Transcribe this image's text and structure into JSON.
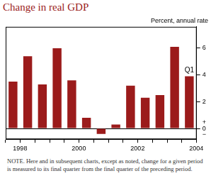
{
  "chart_data": {
    "type": "bar",
    "title": "Change in real GDP",
    "subtitle": "Percent, annual rate",
    "categories": [
      "1998",
      null,
      null,
      null,
      "2000",
      null,
      null,
      null,
      "2002",
      null,
      null,
      null,
      "2004"
    ],
    "values": [
      3.5,
      5.4,
      3.3,
      6.0,
      3.6,
      0.8,
      -0.4,
      0.3,
      3.2,
      2.3,
      2.5,
      6.1,
      3.9
    ],
    "color": "#9b1b1b",
    "ylim": [
      -0.8,
      7.6
    ],
    "yticks": [
      {
        "value": 0,
        "label": "+\n0\n−"
      },
      2,
      4,
      6
    ],
    "grid": false,
    "annotation": "Q1",
    "note": "NOTE. Here and in subsequent charts, except as noted, change for a given period is measured to its final quarter from the final quarter of the preceding period."
  }
}
